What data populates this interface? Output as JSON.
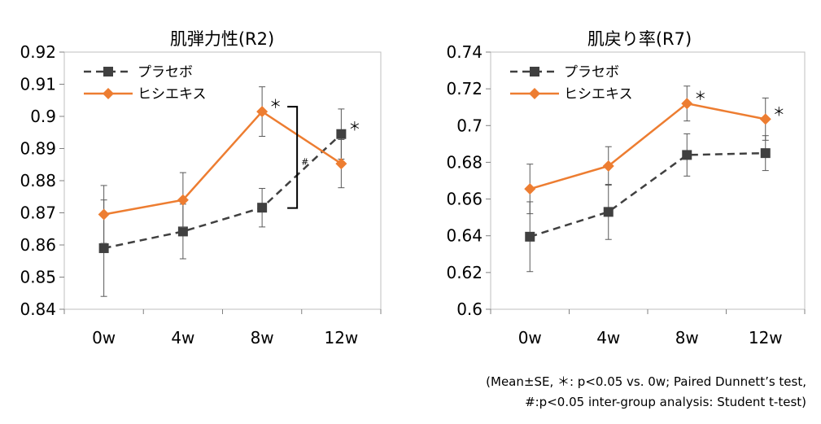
{
  "chart_data": [
    {
      "type": "line",
      "title": "肌弾力性(R2)",
      "categories": [
        "0w",
        "4w",
        "8w",
        "12w"
      ],
      "ylim": [
        0.84,
        0.92
      ],
      "yticks": [
        "0.84",
        "0.85",
        "0.86",
        "0.87",
        "0.88",
        "0.89",
        "0.9",
        "0.91",
        "0.92"
      ],
      "legend_position": "top-left",
      "series": [
        {
          "name": "プラセボ",
          "color": "#404040",
          "marker": "square",
          "line_style": "dashed",
          "values": [
            0.859,
            0.8642,
            0.8716,
            0.8945
          ],
          "error": [
            0.015,
            0.0085,
            0.006,
            0.0078
          ]
        },
        {
          "name": "ヒシエキス",
          "color": "#ed7d31",
          "marker": "diamond",
          "line_style": "solid",
          "values": [
            0.8695,
            0.874,
            0.9015,
            0.8853
          ],
          "error": [
            0.009,
            0.0085,
            0.0077,
            0.0075
          ]
        }
      ],
      "annotations": [
        {
          "text": "＊",
          "category": "8w",
          "series": "ヒシエキス"
        },
        {
          "text": "＊",
          "category": "12w",
          "series": "プラセボ"
        },
        {
          "text": "#",
          "category": "8w",
          "type": "bracket",
          "from": 0.8715,
          "to": 0.9015
        }
      ]
    },
    {
      "type": "line",
      "title": "肌戻り率(R7)",
      "categories": [
        "0w",
        "4w",
        "8w",
        "12w"
      ],
      "ylim": [
        0.6,
        0.74
      ],
      "yticks": [
        "0.6",
        "0.62",
        "0.64",
        "0.66",
        "0.68",
        "0.7",
        "0.72",
        "0.74"
      ],
      "legend_position": "top-left",
      "series": [
        {
          "name": "プラセボ",
          "color": "#404040",
          "marker": "square",
          "line_style": "dashed",
          "values": [
            0.6395,
            0.653,
            0.684,
            0.685
          ],
          "error": [
            0.019,
            0.015,
            0.0115,
            0.0095
          ]
        },
        {
          "name": "ヒシエキス",
          "color": "#ed7d31",
          "marker": "diamond",
          "line_style": "solid",
          "values": [
            0.6655,
            0.678,
            0.712,
            0.7035
          ],
          "error": [
            0.0135,
            0.0105,
            0.0095,
            0.0115
          ]
        }
      ],
      "annotations": [
        {
          "text": "＊",
          "category": "8w",
          "series": "ヒシエキス"
        },
        {
          "text": "＊",
          "category": "12w",
          "series": "ヒシエキス"
        }
      ]
    }
  ],
  "footnote": {
    "line1": "(Mean±SE, ＊: p<0.05 vs. 0w; Paired Dunnett’s test,",
    "line2": "#:p<0.05 inter-group analysis: Student t-test)"
  }
}
